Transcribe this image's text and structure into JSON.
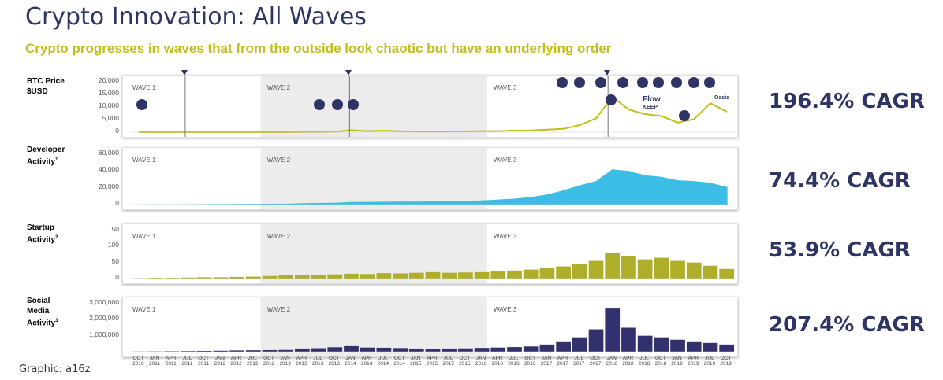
{
  "title": "Crypto Innovation: All Waves",
  "subtitle": "Crypto progresses in waves that from the outside look chaotic but have an underlying order",
  "credit": "Graphic:  a16z",
  "colors": {
    "title": "#2e3566",
    "subtitle": "#c2bf1c",
    "btc": "#c2bf1c",
    "developer": "#3bbde6",
    "startup": "#aeae2a",
    "social": "#33306e",
    "wave_shade": "#ececec"
  },
  "rows": [
    {
      "label_lines": [
        "BTC Price",
        "$USD"
      ],
      "label_color": "#aeae2a",
      "cagr": "196.4% CAGR"
    },
    {
      "label_lines": [
        "Developer",
        "Activity"
      ],
      "label_sup": "1",
      "label_color": "#3bbde6",
      "cagr": "74.4% CAGR"
    },
    {
      "label_lines": [
        "Startup",
        "Activity"
      ],
      "label_sup": "2",
      "label_color": "#aeae2a",
      "cagr": "53.9% CAGR"
    },
    {
      "label_lines": [
        "Social",
        "Media",
        "Activity"
      ],
      "label_sup": "3",
      "label_color": "#2e3566",
      "cagr": "207.4% CAGR"
    }
  ],
  "waves": [
    "WAVE 1",
    "WAVE 2",
    "WAVE 3"
  ],
  "project_logos": [
    "bitcoin-logo",
    "nxt-logo",
    "monero-logo",
    "ethereum-logo",
    "polkadot-logo",
    "flow-logo",
    "keep-logo",
    "avalanche-logo",
    "oasis-logo",
    "near-logo",
    "dydx-logo",
    "aave-logo"
  ],
  "logo_text": [
    "Flow",
    "KEEP",
    "Oasis"
  ],
  "chart_data": [
    {
      "type": "line",
      "title": "BTC Price $USD",
      "ylim": [
        0,
        20000
      ],
      "yticks": [
        "20,000",
        "15,000",
        "10,000",
        "5,000",
        "0"
      ],
      "x": [
        "2010-10",
        "2011-01",
        "2011-04",
        "2011-07",
        "2011-10",
        "2012-01",
        "2012-04",
        "2012-07",
        "2012-10",
        "2013-01",
        "2013-04",
        "2013-07",
        "2013-10",
        "2014-01",
        "2014-04",
        "2014-07",
        "2014-10",
        "2015-01",
        "2015-04",
        "2015-07",
        "2015-10",
        "2016-01",
        "2016-04",
        "2016-07",
        "2016-10",
        "2017-01",
        "2017-04",
        "2017-07",
        "2017-10",
        "2018-01",
        "2018-04",
        "2018-07",
        "2018-10",
        "2019-01",
        "2019-04",
        "2019-07",
        "2019-10"
      ],
      "values": [
        0,
        0,
        1,
        14,
        3,
        6,
        5,
        8,
        11,
        14,
        100,
        90,
        200,
        800,
        450,
        620,
        380,
        230,
        240,
        280,
        300,
        430,
        450,
        650,
        700,
        1000,
        1300,
        2800,
        5500,
        14000,
        9000,
        7200,
        6400,
        3800,
        5200,
        11500,
        8200
      ]
    },
    {
      "type": "area",
      "title": "Developer Activity",
      "ylim": [
        0,
        60000
      ],
      "yticks": [
        "60,000",
        "40,000",
        "20,000",
        "0"
      ],
      "x": [
        "2010-10",
        "2011-01",
        "2011-04",
        "2011-07",
        "2011-10",
        "2012-01",
        "2012-04",
        "2012-07",
        "2012-10",
        "2013-01",
        "2013-04",
        "2013-07",
        "2013-10",
        "2014-01",
        "2014-04",
        "2014-07",
        "2014-10",
        "2015-01",
        "2015-04",
        "2015-07",
        "2015-10",
        "2016-01",
        "2016-04",
        "2016-07",
        "2016-10",
        "2017-01",
        "2017-04",
        "2017-07",
        "2017-10",
        "2018-01",
        "2018-04",
        "2018-07",
        "2018-10",
        "2019-01",
        "2019-04",
        "2019-07",
        "2019-10"
      ],
      "values": [
        0,
        200,
        300,
        400,
        500,
        600,
        700,
        800,
        900,
        1000,
        1500,
        2000,
        2200,
        3000,
        3200,
        3400,
        3500,
        3600,
        3800,
        4000,
        4500,
        5000,
        6000,
        7000,
        9000,
        12000,
        17000,
        23000,
        28000,
        42000,
        40000,
        35000,
        33000,
        29000,
        28000,
        26000,
        21000
      ]
    },
    {
      "type": "bar",
      "title": "Startup Activity",
      "ylim": [
        0,
        150
      ],
      "yticks": [
        "150",
        "100",
        "50",
        "0"
      ],
      "x": [
        "2010-10",
        "2011-01",
        "2011-04",
        "2011-07",
        "2011-10",
        "2012-01",
        "2012-04",
        "2012-07",
        "2012-10",
        "2013-01",
        "2013-04",
        "2013-07",
        "2013-10",
        "2014-01",
        "2014-04",
        "2014-07",
        "2014-10",
        "2015-01",
        "2015-04",
        "2015-07",
        "2015-10",
        "2016-01",
        "2016-04",
        "2016-07",
        "2016-10",
        "2017-01",
        "2017-04",
        "2017-07",
        "2017-10",
        "2018-01",
        "2018-04",
        "2018-07",
        "2018-10",
        "2019-01",
        "2019-04",
        "2019-07",
        "2019-10"
      ],
      "values": [
        1,
        2,
        2,
        3,
        4,
        4,
        5,
        6,
        8,
        10,
        12,
        11,
        13,
        15,
        14,
        17,
        16,
        18,
        20,
        18,
        19,
        20,
        22,
        25,
        28,
        32,
        38,
        45,
        55,
        80,
        70,
        60,
        65,
        55,
        50,
        40,
        30
      ]
    },
    {
      "type": "bar",
      "title": "Social Media Activity",
      "ylim": [
        0,
        3000000
      ],
      "yticks": [
        "3,000,000",
        "2,000,000",
        "1,000,000"
      ],
      "x": [
        "2010-10",
        "2011-01",
        "2011-04",
        "2011-07",
        "2011-10",
        "2012-01",
        "2012-04",
        "2012-07",
        "2012-10",
        "2013-01",
        "2013-04",
        "2013-07",
        "2013-10",
        "2014-01",
        "2014-04",
        "2014-07",
        "2014-10",
        "2015-01",
        "2015-04",
        "2015-07",
        "2015-10",
        "2016-01",
        "2016-04",
        "2016-07",
        "2016-10",
        "2017-01",
        "2017-04",
        "2017-07",
        "2017-10",
        "2018-01",
        "2018-04",
        "2018-07",
        "2018-10",
        "2019-01",
        "2019-04",
        "2019-07",
        "2019-10"
      ],
      "values": [
        10000,
        20000,
        30000,
        40000,
        50000,
        60000,
        80000,
        90000,
        100000,
        110000,
        200000,
        220000,
        280000,
        350000,
        260000,
        250000,
        230000,
        200000,
        190000,
        200000,
        210000,
        240000,
        260000,
        290000,
        330000,
        450000,
        600000,
        900000,
        1400000,
        2700000,
        1500000,
        1000000,
        900000,
        750000,
        600000,
        550000,
        450000
      ]
    }
  ],
  "x_labels": [
    [
      "OCT",
      "2010"
    ],
    [
      "JAN",
      "2011"
    ],
    [
      "APR",
      "2011"
    ],
    [
      "JUL",
      "2011"
    ],
    [
      "OCT",
      "2011"
    ],
    [
      "JAN",
      "2012"
    ],
    [
      "APR",
      "2012"
    ],
    [
      "JUL",
      "2012"
    ],
    [
      "OCT",
      "2012"
    ],
    [
      "JAN",
      "2013"
    ],
    [
      "APR",
      "2013"
    ],
    [
      "JUL",
      "2013"
    ],
    [
      "OCT",
      "2013"
    ],
    [
      "JAN",
      "2014"
    ],
    [
      "APR",
      "2014"
    ],
    [
      "JUL",
      "2014"
    ],
    [
      "OCT",
      "2014"
    ],
    [
      "JAN",
      "2015"
    ],
    [
      "APR",
      "2015"
    ],
    [
      "JUL",
      "2015"
    ],
    [
      "OCT",
      "2015"
    ],
    [
      "JAN",
      "2016"
    ],
    [
      "APR",
      "2016"
    ],
    [
      "JUL",
      "2016"
    ],
    [
      "OCT",
      "2016"
    ],
    [
      "JAN",
      "2017"
    ],
    [
      "APR",
      "2017"
    ],
    [
      "JUL",
      "2017"
    ],
    [
      "OCT",
      "2017"
    ],
    [
      "JAN",
      "2018"
    ],
    [
      "APR",
      "2018"
    ],
    [
      "JUL",
      "2018"
    ],
    [
      "OCT",
      "2018"
    ],
    [
      "JAN",
      "2019"
    ],
    [
      "APR",
      "2019"
    ],
    [
      "JUL",
      "2019"
    ],
    [
      "OCT",
      "2019"
    ]
  ]
}
